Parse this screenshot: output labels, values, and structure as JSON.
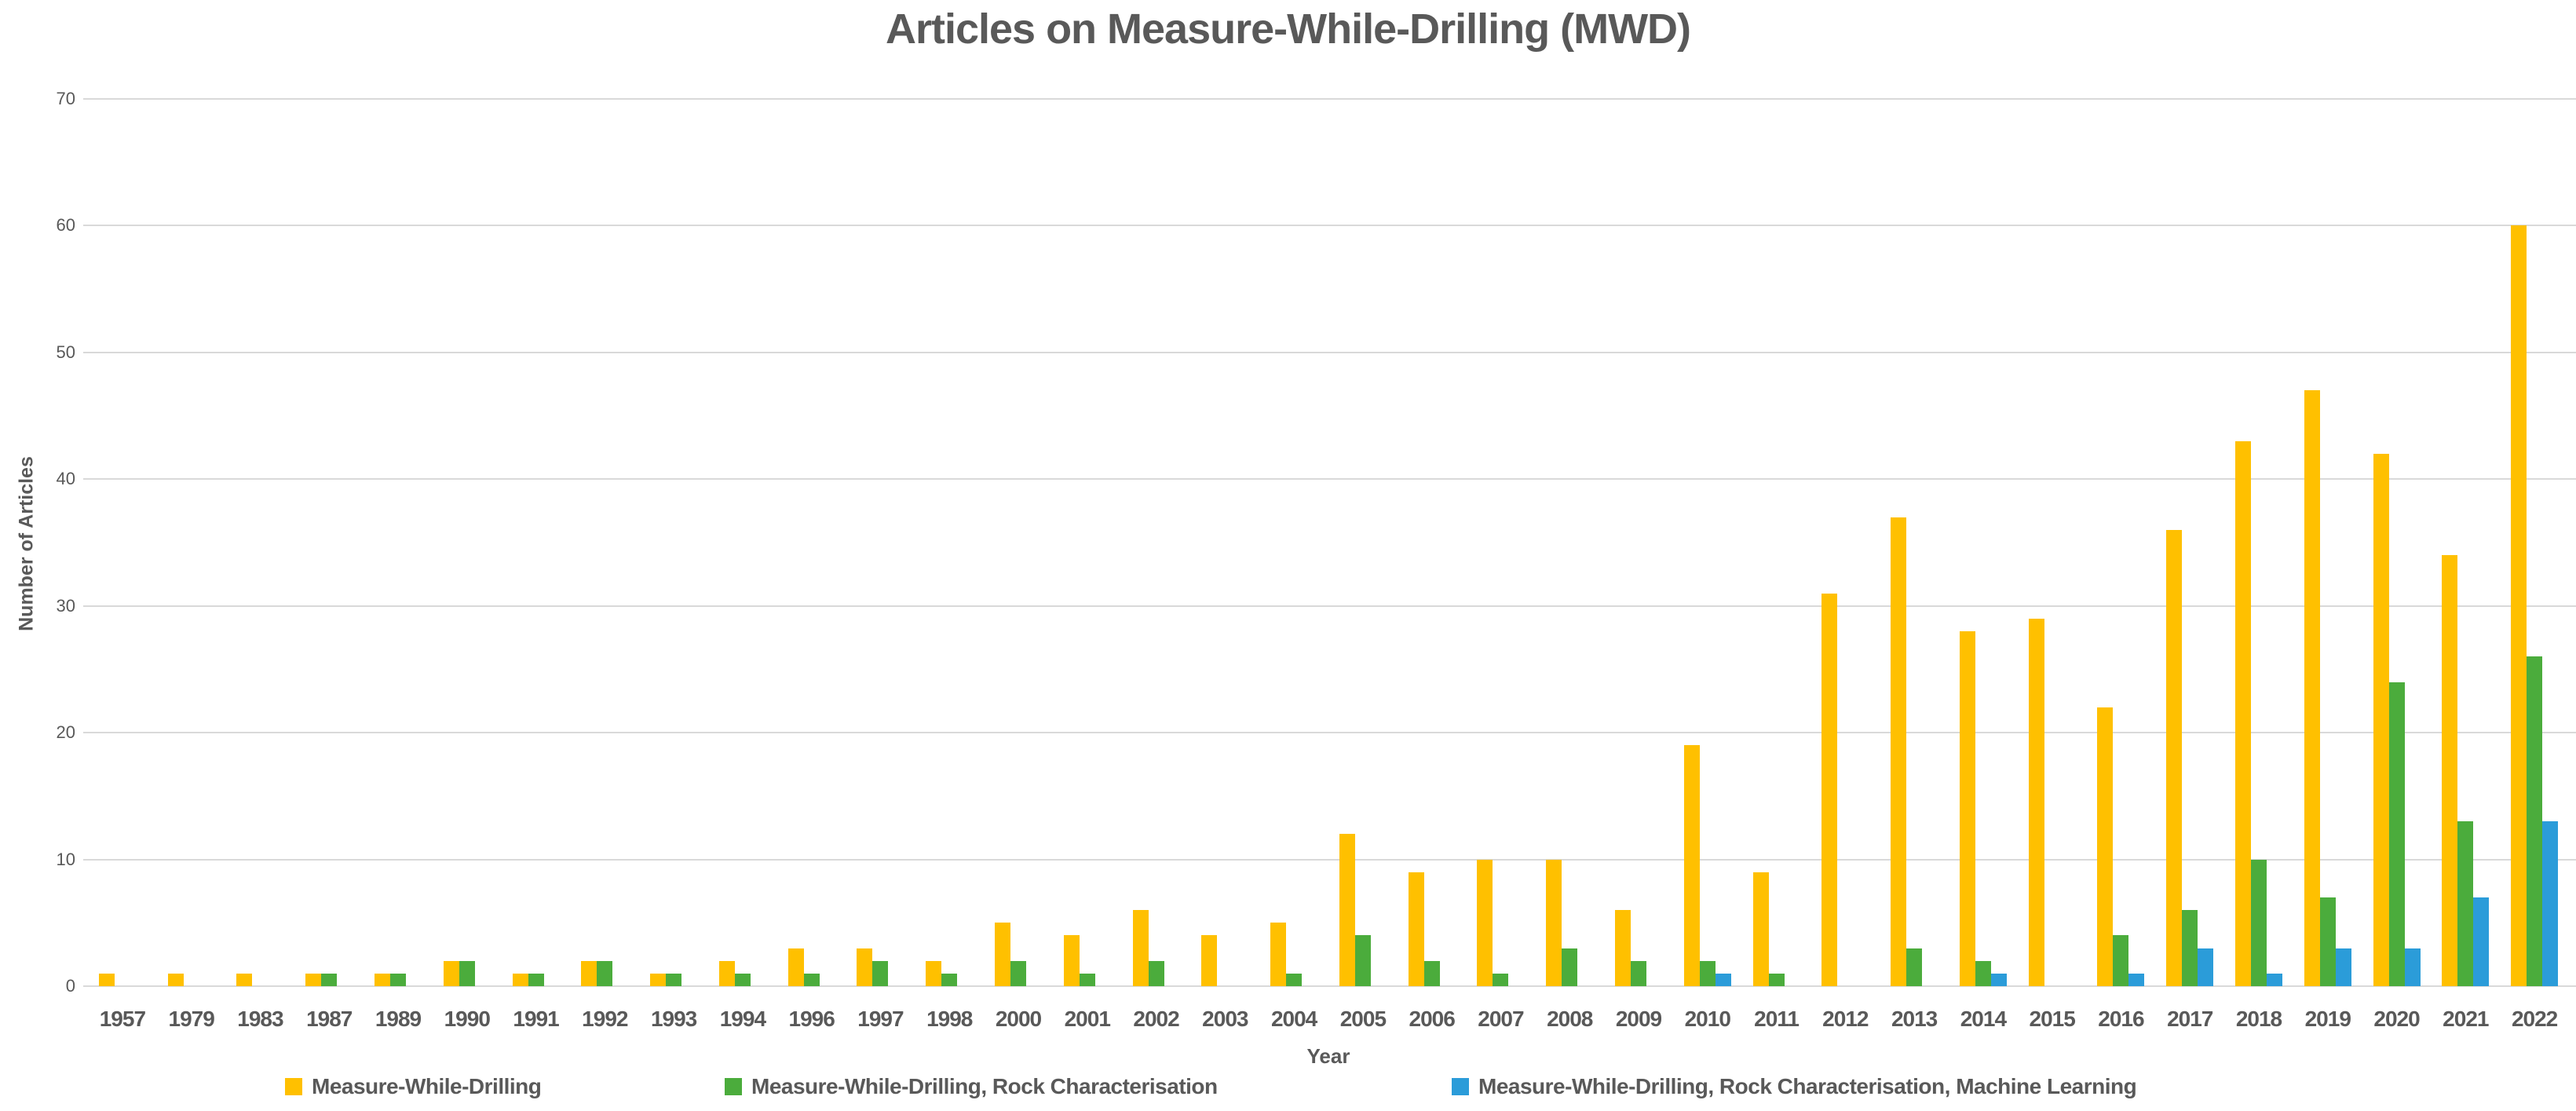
{
  "chart_data": {
    "type": "bar",
    "title": "Articles on Measure-While-Drilling (MWD)",
    "xlabel": "Year",
    "ylabel": "Number of Articles",
    "ylim": [
      0,
      70
    ],
    "ytick_step": 10,
    "ytick_labels": [
      "0",
      "10",
      "20",
      "30",
      "40",
      "50",
      "60",
      "70"
    ],
    "grid": true,
    "legend_position": "bottom",
    "colors": {
      "text": "#595959",
      "gridline": "#d9d9d9",
      "series_yellow": "#FFC000",
      "series_green": "#4BAC3C",
      "series_blue": "#2B9CD9"
    },
    "categories": [
      "1957",
      "1979",
      "1983",
      "1987",
      "1989",
      "1990",
      "1991",
      "1992",
      "1993",
      "1994",
      "1996",
      "1997",
      "1998",
      "2000",
      "2001",
      "2002",
      "2003",
      "2004",
      "2005",
      "2006",
      "2007",
      "2008",
      "2009",
      "2010",
      "2011",
      "2012",
      "2013",
      "2014",
      "2015",
      "2016",
      "2017",
      "2018",
      "2019",
      "2020",
      "2021",
      "2022"
    ],
    "series": [
      {
        "name": "Measure-While-Drilling",
        "color": "#FFC000",
        "values": [
          1,
          1,
          1,
          1,
          1,
          2,
          1,
          2,
          1,
          2,
          3,
          3,
          2,
          5,
          4,
          6,
          4,
          5,
          12,
          9,
          10,
          10,
          6,
          19,
          9,
          31,
          37,
          28,
          29,
          22,
          36,
          43,
          47,
          42,
          34,
          60
        ]
      },
      {
        "name": "Measure-While-Drilling, Rock Characterisation",
        "color": "#4BAC3C",
        "values": [
          0,
          0,
          0,
          1,
          1,
          2,
          1,
          2,
          1,
          1,
          1,
          2,
          1,
          2,
          1,
          2,
          0,
          1,
          4,
          2,
          1,
          3,
          2,
          2,
          1,
          0,
          3,
          2,
          0,
          4,
          6,
          10,
          7,
          24,
          13,
          26
        ]
      },
      {
        "name": "Measure-While-Drilling, Rock Characterisation, Machine Learning",
        "color": "#2B9CD9",
        "values": [
          0,
          0,
          0,
          0,
          0,
          0,
          0,
          0,
          0,
          0,
          0,
          0,
          0,
          0,
          0,
          0,
          0,
          0,
          0,
          0,
          0,
          0,
          0,
          1,
          0,
          0,
          0,
          1,
          0,
          1,
          3,
          1,
          3,
          3,
          7,
          13
        ]
      }
    ]
  }
}
